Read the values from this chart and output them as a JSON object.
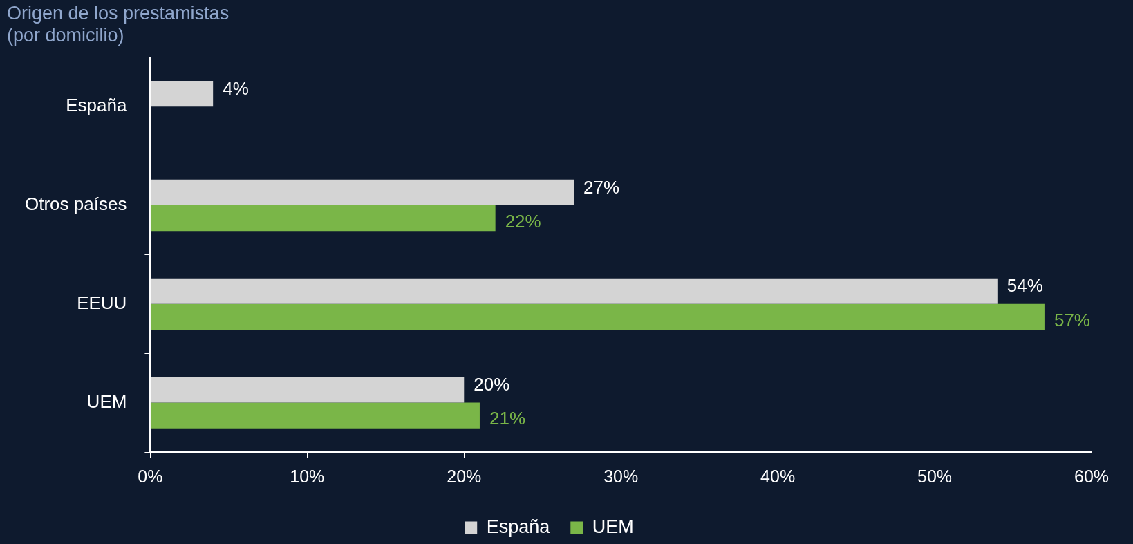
{
  "chart_data": {
    "type": "bar",
    "orientation": "horizontal",
    "title": "Origen de los prestamistas\n(por domicilio)",
    "categories": [
      "España",
      "Otros países",
      "EEUU",
      "UEM"
    ],
    "series": [
      {
        "name": "España",
        "color": "#d4d4d4",
        "values": [
          4,
          27,
          54,
          20
        ],
        "value_labels": [
          "4%",
          "27%",
          "54%",
          "20%"
        ]
      },
      {
        "name": "UEM",
        "color": "#7ab648",
        "values": [
          null,
          22,
          57,
          21
        ],
        "value_labels": [
          null,
          "22%",
          "57%",
          "21%"
        ]
      }
    ],
    "xlim": [
      0,
      60
    ],
    "xticks": [
      {
        "value": 0,
        "label": "0%"
      },
      {
        "value": 10,
        "label": "10%"
      },
      {
        "value": 20,
        "label": "20%"
      },
      {
        "value": 30,
        "label": "30%"
      },
      {
        "value": 40,
        "label": "40%"
      },
      {
        "value": 50,
        "label": "50%"
      },
      {
        "value": 60,
        "label": "60%"
      }
    ],
    "grid": false,
    "legend": "bottom"
  }
}
